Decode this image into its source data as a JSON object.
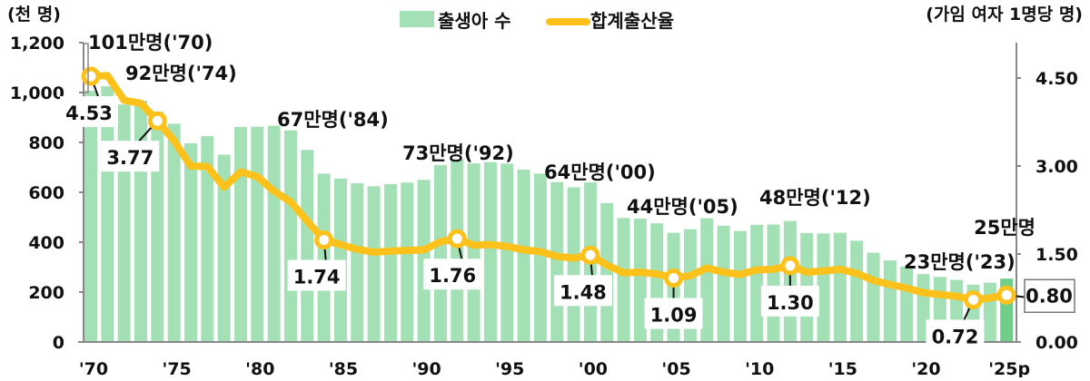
{
  "chart_data": {
    "type": "bar+line",
    "title": "",
    "legend": [
      {
        "name": "출생아 수",
        "type": "bar",
        "color": "#a3e0b5"
      },
      {
        "name": "합계출산율",
        "type": "line",
        "color": "#fcc21b"
      }
    ],
    "left_axis": {
      "label": "(천 명)",
      "ticks": [
        "0",
        "200",
        "400",
        "600",
        "800",
        "1,000",
        "1,200"
      ],
      "range": [
        0,
        1200
      ]
    },
    "right_axis": {
      "label": "(가임 여자 1명당 명)",
      "ticks": [
        "0.00",
        "1.50",
        "3.00",
        "4.50"
      ],
      "range": [
        0,
        4.5
      ]
    },
    "x_tick_labels": [
      "'70",
      "'75",
      "'80",
      "'85",
      "'90",
      "'95",
      "'00",
      "'05",
      "'10",
      "'15",
      "'20",
      "'25p"
    ],
    "years": [
      1970,
      1971,
      1972,
      1973,
      1974,
      1975,
      1976,
      1977,
      1978,
      1979,
      1980,
      1981,
      1982,
      1983,
      1984,
      1985,
      1986,
      1987,
      1988,
      1989,
      1990,
      1991,
      1992,
      1993,
      1994,
      1995,
      1996,
      1997,
      1998,
      1999,
      2000,
      2001,
      2002,
      2003,
      2004,
      2005,
      2006,
      2007,
      2008,
      2009,
      2010,
      2011,
      2012,
      2013,
      2014,
      2015,
      2016,
      2017,
      2018,
      2019,
      2020,
      2021,
      2022,
      2023,
      2024,
      2025
    ],
    "series": [
      {
        "name": "출생아 수",
        "unit": "천 명",
        "values": [
          1007,
          1025,
          952,
          967,
          923,
          875,
          797,
          825,
          751,
          862,
          863,
          867,
          848,
          770,
          675,
          655,
          636,
          624,
          633,
          639,
          650,
          709,
          731,
          716,
          721,
          715,
          691,
          675,
          641,
          620,
          640,
          557,
          497,
          495,
          476,
          438,
          452,
          496,
          466,
          445,
          470,
          471,
          485,
          437,
          435,
          438,
          406,
          358,
          327,
          303,
          272,
          261,
          249,
          230,
          238,
          254
        ]
      },
      {
        "name": "합계출산율",
        "unit": "가임 여자 1명당 명",
        "values": [
          4.53,
          4.54,
          4.12,
          4.07,
          3.77,
          3.43,
          3.0,
          2.99,
          2.64,
          2.9,
          2.82,
          2.57,
          2.39,
          2.06,
          1.74,
          1.66,
          1.58,
          1.53,
          1.55,
          1.56,
          1.57,
          1.71,
          1.76,
          1.65,
          1.66,
          1.63,
          1.57,
          1.54,
          1.46,
          1.43,
          1.48,
          1.31,
          1.18,
          1.19,
          1.16,
          1.09,
          1.13,
          1.26,
          1.19,
          1.15,
          1.23,
          1.24,
          1.3,
          1.19,
          1.21,
          1.24,
          1.17,
          1.05,
          0.98,
          0.92,
          0.84,
          0.81,
          0.78,
          0.72,
          0.75,
          0.8
        ]
      }
    ],
    "annotations": [
      {
        "text": "101만명('70)",
        "year": 1970
      },
      {
        "text": "92만명('74)",
        "year": 1974
      },
      {
        "text": "67만명('84)",
        "year": 1984
      },
      {
        "text": "73만명('92)",
        "year": 1992
      },
      {
        "text": "64만명('00)",
        "year": 2000
      },
      {
        "text": "44만명('05)",
        "year": 2005
      },
      {
        "text": "48만명('12)",
        "year": 2012
      },
      {
        "text": "23만명('23)",
        "year": 2023
      },
      {
        "text": "25만명",
        "year": 2025
      }
    ],
    "tfr_labels": [
      {
        "year": 1970,
        "text": "4.53"
      },
      {
        "year": 1974,
        "text": "3.77"
      },
      {
        "year": 1984,
        "text": "1.74"
      },
      {
        "year": 1992,
        "text": "1.76"
      },
      {
        "year": 2000,
        "text": "1.48"
      },
      {
        "year": 2005,
        "text": "1.09"
      },
      {
        "year": 2012,
        "text": "1.30"
      },
      {
        "year": 2023,
        "text": "0.72"
      },
      {
        "year": 2025,
        "text": "0.80"
      }
    ],
    "highlight_bar": {
      "year": 2025,
      "color": "#6fcf8a"
    },
    "grid": false,
    "legend_position": "top"
  }
}
